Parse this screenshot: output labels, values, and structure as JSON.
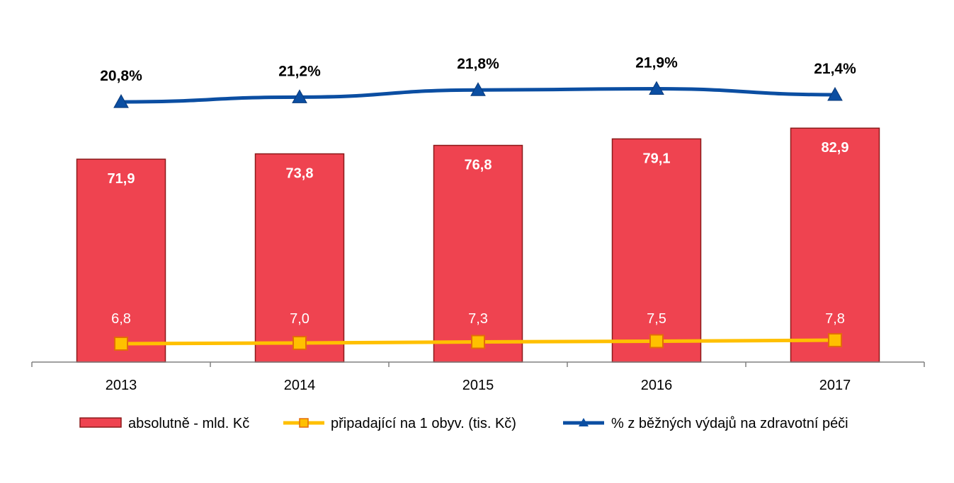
{
  "chart_data": {
    "type": "bar",
    "categories": [
      "2013",
      "2014",
      "2015",
      "2016",
      "2017"
    ],
    "series": [
      {
        "name": "absolutně - mld. Kč",
        "type": "bar",
        "values": [
          71.9,
          73.8,
          76.8,
          79.1,
          82.9
        ],
        "labels": [
          "71,9",
          "73,8",
          "76,8",
          "79,1",
          "82,9"
        ],
        "color": "#EF4350",
        "axis": "primary"
      },
      {
        "name": "připadající na 1 obyv. (tis. Kč)",
        "type": "line",
        "marker": "square",
        "values": [
          6.8,
          7.0,
          7.3,
          7.5,
          7.8
        ],
        "labels": [
          "6,8",
          "7,0",
          "7,3",
          "7,5",
          "7,8"
        ],
        "color": "#FFC000",
        "axis": "primary"
      },
      {
        "name": "% z  běžných výdajů na zdravotní péči",
        "type": "line",
        "marker": "triangle",
        "values": [
          20.8,
          21.2,
          21.8,
          21.9,
          21.4
        ],
        "labels": [
          "20,8%",
          "21,2%",
          "21,8%",
          "21,9%",
          "21,4%"
        ],
        "color": "#0B4EA2",
        "axis": "secondary"
      }
    ],
    "ylim": [
      0,
      100
    ],
    "y2lim": [
      0,
      25
    ],
    "grid": false,
    "legend": "bottom"
  }
}
